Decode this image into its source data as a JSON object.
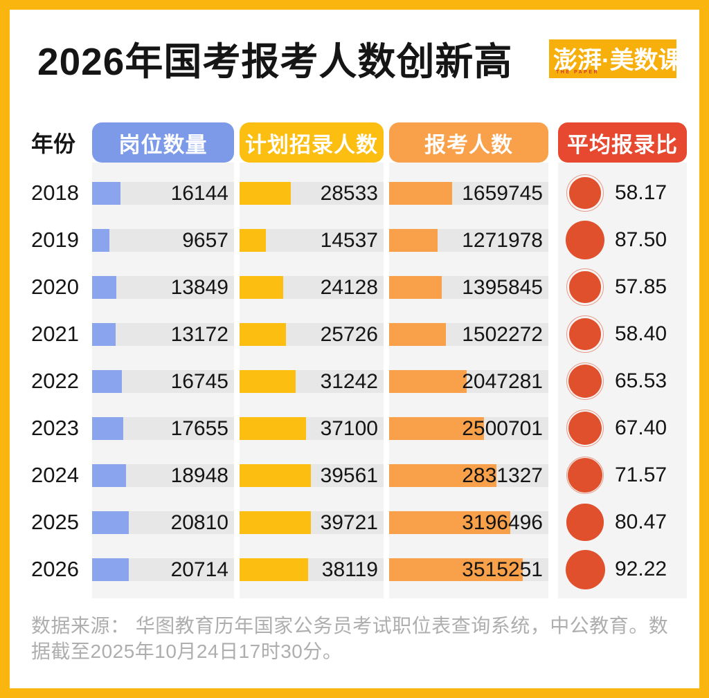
{
  "header": {
    "title": "2026年国考报考人数创新高",
    "logo": {
      "text": "澎湃·美数课",
      "subtext": "THE PAPER",
      "bg_color": "#F7AF0C",
      "subtext_color": "#D03A26"
    }
  },
  "table": {
    "year_label": "年份",
    "columns": [
      {
        "key": "positions",
        "label": "岗位数量",
        "header_color": "#7C9AE8",
        "bar_color": "#8AA5EE"
      },
      {
        "key": "planned",
        "label": "计划招录人数",
        "header_color": "#FCBE11",
        "bar_color": "#FCBE11"
      },
      {
        "key": "applicants",
        "label": "报考人数",
        "header_color": "#F9A04B",
        "bar_color": "#F9A04B"
      },
      {
        "key": "ratio",
        "label": "平均报录比",
        "header_color": "#E6492F",
        "dot_color": "#E0502D"
      }
    ],
    "rows": [
      {
        "year": "2018",
        "positions": 16144,
        "planned": 28533,
        "applicants": 1659745,
        "ratio": 58.17,
        "ratio_label": "58.17"
      },
      {
        "year": "2019",
        "positions": 9657,
        "planned": 14537,
        "applicants": 1271978,
        "ratio": 87.5,
        "ratio_label": "87.50"
      },
      {
        "year": "2020",
        "positions": 13849,
        "planned": 24128,
        "applicants": 1395845,
        "ratio": 57.85,
        "ratio_label": "57.85"
      },
      {
        "year": "2021",
        "positions": 13172,
        "planned": 25726,
        "applicants": 1502272,
        "ratio": 58.4,
        "ratio_label": "58.40"
      },
      {
        "year": "2022",
        "positions": 16745,
        "planned": 31242,
        "applicants": 2047281,
        "ratio": 65.53,
        "ratio_label": "65.53"
      },
      {
        "year": "2023",
        "positions": 17655,
        "planned": 37100,
        "applicants": 2500701,
        "ratio": 67.4,
        "ratio_label": "67.40"
      },
      {
        "year": "2024",
        "positions": 18948,
        "planned": 39561,
        "applicants": 2831327,
        "ratio": 71.57,
        "ratio_label": "71.57"
      },
      {
        "year": "2025",
        "positions": 20810,
        "planned": 39721,
        "applicants": 3196496,
        "ratio": 80.47,
        "ratio_label": "80.47"
      },
      {
        "year": "2026",
        "positions": 20714,
        "planned": 38119,
        "applicants": 3515251,
        "ratio": 92.22,
        "ratio_label": "92.22"
      }
    ]
  },
  "footer": {
    "source_text": "数据来源： 华图教育历年国家公务员考试职位表查询系统，中公教育。数据截至2025年10月24日17时30分。"
  },
  "chart_data": {
    "type": "table",
    "title": "2026年国考报考人数创新高",
    "categories": [
      "2018",
      "2019",
      "2020",
      "2021",
      "2022",
      "2023",
      "2024",
      "2025",
      "2026"
    ],
    "series": [
      {
        "name": "岗位数量",
        "type": "bar",
        "values": [
          16144,
          9657,
          13849,
          13172,
          16745,
          17655,
          18948,
          20810,
          20714
        ],
        "bar_axis_max": 80000
      },
      {
        "name": "计划招录人数",
        "type": "bar",
        "values": [
          28533,
          14537,
          24128,
          25726,
          31242,
          37100,
          39561,
          39721,
          38119
        ],
        "bar_axis_max": 80000
      },
      {
        "name": "报考人数",
        "type": "bar",
        "values": [
          1659745,
          1271978,
          1395845,
          1502272,
          2047281,
          2500701,
          2831327,
          3196496,
          3515251
        ],
        "bar_axis_max": 4200000
      },
      {
        "name": "平均报录比",
        "type": "circle",
        "values": [
          58.17,
          87.5,
          57.85,
          58.4,
          65.53,
          67.4,
          71.57,
          80.47,
          92.22
        ],
        "circle_axis_max": 92.22
      }
    ],
    "legend_position": "column-headers",
    "grid": false
  }
}
